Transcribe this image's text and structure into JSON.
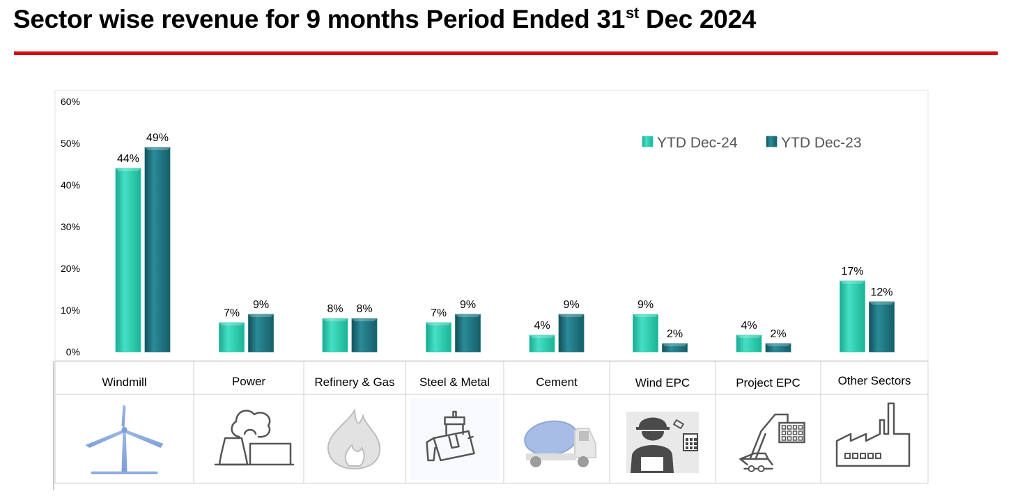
{
  "title": {
    "main": "Sector wise revenue for 9 months Period Ended 31",
    "sup": "st",
    "tail": " Dec 2024"
  },
  "colors": {
    "rule": "#d50c0c",
    "series1": "#2fcdb1",
    "series2": "#1e7580",
    "icon": "#555555",
    "windmill": "#8faee0",
    "grid": "#d0d0d0"
  },
  "chart_data": {
    "type": "bar",
    "categories": [
      "Windmill",
      "Power",
      "Refinery & Gas",
      "Steel & Metal",
      "Cement",
      "Wind EPC",
      "Project EPC",
      "Other Sectors"
    ],
    "series": [
      {
        "name": "YTD Dec-24",
        "values": [
          44,
          7,
          8,
          7,
          4,
          9,
          4,
          17
        ],
        "labels": [
          "44%",
          "7%",
          "8%",
          "7%",
          "4%",
          "9%",
          "4%",
          "17%"
        ]
      },
      {
        "name": "YTD Dec-23",
        "values": [
          49,
          9,
          8,
          9,
          9,
          2,
          2,
          12
        ],
        "labels": [
          "49%",
          "9%",
          "8%",
          "9%",
          "9%",
          "2%",
          "2%",
          "12%"
        ]
      }
    ],
    "ylim": [
      0,
      60
    ],
    "yticks": [
      "0%",
      "10%",
      "20%",
      "30%",
      "40%",
      "50%",
      "60%"
    ],
    "legend": "top-right",
    "grid": false,
    "icons": [
      "windmill-icon",
      "power-plant-icon",
      "flame-icon",
      "ladle-icon",
      "mixer-truck-icon",
      "engineer-icon",
      "crane-icon",
      "factory-icon"
    ]
  }
}
